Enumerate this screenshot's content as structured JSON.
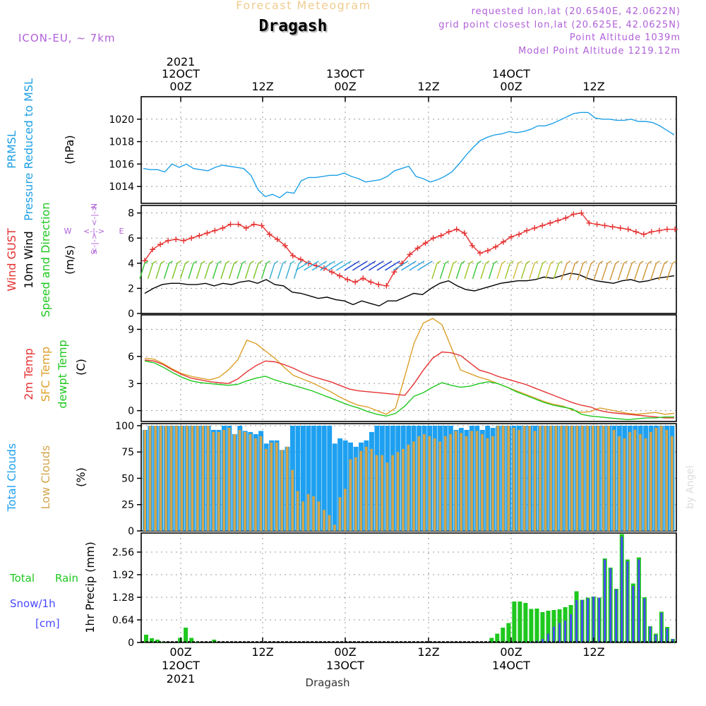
{
  "header": {
    "title": "Forecast Meteogram",
    "location": "Dragash",
    "model": "ICON-EU, ~ 7km",
    "requested": "requested lon,lat (20.6540E, 42.0622N)",
    "gridpoint": "grid point closest lon,lat (20.625E, 42.0625N)",
    "point_alt": "Point Altitude 1039m",
    "model_alt": "Model Point Altitude 1219.12m",
    "footer": "Dragash",
    "credit": "by Angel"
  },
  "colors": {
    "pressure": "#1ea0e6",
    "gust": "#e63232",
    "wind": "#000000",
    "temp": "#e63232",
    "sfc": "#dca02a",
    "dewpt": "#1ec81e",
    "cloud_total": "#1ea0f0",
    "cloud_low": "#d2a64c",
    "rain": "#1ec81e",
    "snow": "#4848ff",
    "axis_text": "#000000",
    "label_purple": "#b060d8",
    "gridline": "#999999"
  },
  "chart_data": [
    {
      "type": "line",
      "id": "pressure",
      "title": "PRMSL Pressure Reduced to MSL",
      "ylabel": "(hPa)",
      "ylim": [
        1012.5,
        1022
      ],
      "yticks": [
        1014,
        1016,
        1018,
        1020
      ],
      "series": [
        {
          "name": "PRMSL",
          "values": [
            1015.6,
            1015.5,
            1015.5,
            1015.3,
            1016.0,
            1015.7,
            1016.0,
            1015.6,
            1015.5,
            1015.4,
            1015.7,
            1015.9,
            1015.8,
            1015.7,
            1015.6,
            1015.0,
            1013.7,
            1013.1,
            1013.3,
            1013.0,
            1013.5,
            1013.4,
            1014.5,
            1014.8,
            1014.8,
            1014.9,
            1015.0,
            1015.0,
            1015.2,
            1014.9,
            1014.7,
            1014.4,
            1014.5,
            1014.6,
            1014.9,
            1015.4,
            1015.6,
            1015.8,
            1014.9,
            1014.7,
            1014.4,
            1014.6,
            1014.9,
            1015.3,
            1016.0,
            1016.8,
            1017.5,
            1018.1,
            1018.4,
            1018.6,
            1018.7,
            1018.9,
            1018.8,
            1018.9,
            1019.1,
            1019.4,
            1019.4,
            1019.6,
            1019.9,
            1020.2,
            1020.5,
            1020.6,
            1020.6,
            1020.1,
            1020.0,
            1020.0,
            1019.9,
            1019.9,
            1020.0,
            1019.8,
            1019.8,
            1019.7,
            1019.4,
            1019.0,
            1018.6
          ]
        }
      ]
    },
    {
      "type": "line",
      "id": "wind",
      "title": "Wind GUST / 10m Wind Speed and Direction",
      "ylabel": "(m/s)",
      "ylim": [
        0,
        8.6
      ],
      "yticks": [
        0,
        2,
        4,
        6,
        8
      ],
      "compass": {
        "n": "N",
        "s": "S",
        "e": "E",
        "w": "W",
        "arrow": "<-|->"
      },
      "series": [
        {
          "name": "Wind GUST",
          "values": [
            4.2,
            5.1,
            5.5,
            5.8,
            5.9,
            5.8,
            6.0,
            6.2,
            6.4,
            6.6,
            6.8,
            7.1,
            7.1,
            6.8,
            7.1,
            7.0,
            6.3,
            5.9,
            5.4,
            4.6,
            4.3,
            4.0,
            3.8,
            3.6,
            3.3,
            3.0,
            2.7,
            2.5,
            2.8,
            2.5,
            2.3,
            2.2,
            3.3,
            4.0,
            4.7,
            5.2,
            5.6,
            6.0,
            6.2,
            6.5,
            6.7,
            6.4,
            5.4,
            4.8,
            5.0,
            5.3,
            5.7,
            6.1,
            6.3,
            6.6,
            6.8,
            7.0,
            7.2,
            7.4,
            7.6,
            7.9,
            8.0,
            7.2,
            7.1,
            7.0,
            6.9,
            6.8,
            6.7,
            6.5,
            6.3,
            6.5,
            6.6,
            6.7,
            6.7
          ]
        },
        {
          "name": "10m Wind",
          "values": [
            1.6,
            2.0,
            2.3,
            2.4,
            2.4,
            2.3,
            2.3,
            2.4,
            2.2,
            2.4,
            2.3,
            2.5,
            2.6,
            2.4,
            2.7,
            2.3,
            2.2,
            1.7,
            1.6,
            1.4,
            1.2,
            1.3,
            1.1,
            1.0,
            0.7,
            1.0,
            0.8,
            0.6,
            1.0,
            1.0,
            1.3,
            1.6,
            1.5,
            2.0,
            2.4,
            2.6,
            2.2,
            1.9,
            1.8,
            2.0,
            2.2,
            2.4,
            2.5,
            2.6,
            2.6,
            2.7,
            2.9,
            2.8,
            3.0,
            3.2,
            3.1,
            2.8,
            2.6,
            2.5,
            2.4,
            2.6,
            2.7,
            2.5,
            2.6,
            2.8,
            2.9,
            3.0
          ]
        }
      ]
    },
    {
      "type": "line",
      "id": "temp",
      "title": "2m Temp / SFC Temp / dewpt Temp",
      "ylabel": "(C)",
      "ylim": [
        -1.2,
        10.6
      ],
      "yticks": [
        0,
        3,
        6,
        9
      ],
      "series": [
        {
          "name": "2m Temp",
          "values": [
            5.6,
            5.5,
            5.1,
            4.5,
            4.0,
            3.6,
            3.4,
            3.2,
            3.1,
            3.0,
            3.5,
            4.3,
            5.0,
            5.5,
            5.4,
            5.1,
            4.7,
            4.2,
            3.8,
            3.5,
            3.2,
            2.8,
            2.4,
            2.2,
            2.1,
            2.0,
            1.9,
            1.8,
            1.7,
            3.0,
            4.5,
            5.8,
            6.5,
            6.4,
            6.1,
            5.3,
            4.5,
            4.2,
            3.8,
            3.5,
            3.2,
            2.9,
            2.5,
            2.1,
            1.7,
            1.3,
            0.9,
            0.6,
            0.4,
            0.0,
            -0.2,
            -0.3,
            -0.4,
            -0.5,
            -0.6,
            -0.7,
            -0.8,
            -0.8
          ]
        },
        {
          "name": "SFC Temp",
          "values": [
            5.8,
            5.7,
            5.2,
            4.6,
            4.1,
            3.8,
            3.6,
            3.4,
            3.7,
            4.5,
            5.6,
            7.8,
            7.4,
            6.6,
            5.8,
            4.8,
            3.9,
            3.5,
            3.1,
            2.6,
            2.1,
            1.5,
            1.0,
            0.6,
            0.4,
            0.0,
            -0.4,
            0.3,
            3.8,
            7.5,
            9.7,
            10.2,
            9.5,
            7.0,
            4.5,
            4.1,
            3.7,
            3.4,
            3.0,
            2.6,
            2.2,
            1.8,
            1.4,
            1.0,
            0.7,
            0.5,
            0.1,
            -0.2,
            -0.1,
            0.3,
            0.1,
            -0.1,
            -0.3,
            -0.4,
            -0.3,
            -0.2,
            -0.4,
            -0.3
          ]
        },
        {
          "name": "dewpt Temp",
          "values": [
            5.5,
            5.3,
            4.8,
            4.2,
            3.7,
            3.3,
            3.1,
            3.0,
            2.9,
            2.8,
            2.9,
            3.3,
            3.6,
            3.8,
            3.4,
            3.1,
            2.8,
            2.5,
            2.2,
            1.8,
            1.4,
            1.0,
            0.6,
            0.3,
            -0.1,
            -0.4,
            -0.6,
            -0.3,
            0.5,
            1.6,
            2.0,
            2.6,
            3.1,
            2.8,
            2.6,
            2.7,
            3.0,
            3.2,
            3.0,
            2.6,
            2.1,
            1.7,
            1.3,
            0.9,
            0.6,
            0.4,
            0.2,
            -0.4,
            -0.6,
            -0.7,
            -0.8,
            -0.9,
            -1.0,
            -0.9,
            -0.8,
            -0.8,
            -0.7,
            -0.7
          ]
        }
      ]
    },
    {
      "type": "bar",
      "id": "clouds",
      "title": "Total Clouds / Low Clouds",
      "ylabel": "(%)",
      "ylim": [
        0,
        102
      ],
      "yticks": [
        0,
        25,
        50,
        75,
        100
      ],
      "series": [
        {
          "name": "Total Clouds",
          "values": [
            96,
            100,
            100,
            100,
            100,
            100,
            100,
            100,
            100,
            100,
            100,
            100,
            100,
            96,
            96,
            100,
            100,
            92,
            100,
            95,
            94,
            92,
            95,
            83,
            86,
            86,
            77,
            80,
            100,
            100,
            100,
            100,
            100,
            100,
            100,
            100,
            83,
            88,
            86,
            84,
            80,
            84,
            86,
            94,
            100,
            100,
            100,
            100,
            100,
            100,
            100,
            100,
            100,
            100,
            100,
            100,
            100,
            100,
            100,
            96,
            98,
            96,
            100,
            100,
            96,
            100,
            98,
            100,
            100,
            100,
            100,
            100,
            100,
            100,
            100,
            100,
            100,
            100,
            100,
            100,
            100,
            100,
            100,
            100,
            100,
            100,
            100,
            100,
            100,
            100,
            100,
            100,
            100,
            100,
            100,
            100,
            100,
            100,
            100,
            100,
            100
          ]
        },
        {
          "name": "Low Clouds",
          "values": [
            96,
            100,
            100,
            100,
            100,
            100,
            100,
            100,
            100,
            100,
            100,
            100,
            100,
            94,
            94,
            96,
            98,
            92,
            96,
            94,
            92,
            88,
            90,
            78,
            84,
            84,
            77,
            80,
            58,
            38,
            28,
            35,
            33,
            28,
            20,
            15,
            6,
            32,
            40,
            68,
            70,
            76,
            80,
            78,
            72,
            72,
            65,
            72,
            75,
            78,
            82,
            85,
            90,
            92,
            90,
            88,
            85,
            90,
            92,
            95,
            93,
            90,
            95,
            95,
            92,
            88,
            90,
            100,
            100,
            100,
            98,
            96,
            100,
            100,
            95,
            100,
            100,
            100,
            100,
            100,
            100,
            100,
            100,
            100,
            100,
            100,
            100,
            100,
            100,
            96,
            90,
            88,
            94,
            96,
            92,
            88,
            94,
            98,
            100,
            96,
            90
          ]
        }
      ]
    },
    {
      "type": "bar",
      "id": "precip",
      "title": "Total Rain / Snow/1h [cm]",
      "ylabel": "1hr Precip (mm)",
      "ylim": [
        0,
        3.1
      ],
      "yticks": [
        0,
        0.64,
        1.28,
        1.92,
        2.56
      ],
      "series": [
        {
          "name": "Total Rain",
          "values": [
            0.22,
            0.12,
            0.08,
            0.02,
            0,
            0,
            0.13,
            0.42,
            0.13,
            0.02,
            0,
            0,
            0.08,
            0,
            0,
            0,
            0,
            0,
            0,
            0,
            0,
            0,
            0,
            0,
            0,
            0,
            0,
            0,
            0,
            0,
            0,
            0,
            0,
            0,
            0,
            0,
            0,
            0,
            0,
            0,
            0,
            0,
            0,
            0,
            0,
            0,
            0,
            0,
            0,
            0,
            0,
            0,
            0,
            0,
            0,
            0,
            0,
            0,
            0,
            0,
            0,
            0.13,
            0.25,
            0.42,
            0.55,
            1.16,
            1.16,
            1.12,
            0.95,
            0.96,
            0.86,
            0.9,
            0.92,
            0.94,
            1.0,
            1.06,
            1.45,
            1.21,
            1.27,
            1.3,
            1.27,
            2.38,
            2.12,
            1.52,
            3.07,
            2.35,
            1.67,
            2.41,
            1.28,
            0.46,
            0.25,
            0.87,
            0.44,
            0.1
          ]
        },
        {
          "name": "Snow/1h",
          "values": [
            0,
            0,
            0,
            0,
            0,
            0,
            0,
            0,
            0,
            0,
            0,
            0,
            0,
            0,
            0,
            0,
            0,
            0,
            0,
            0,
            0,
            0,
            0,
            0,
            0,
            0,
            0,
            0,
            0,
            0,
            0,
            0,
            0,
            0,
            0,
            0,
            0,
            0,
            0,
            0,
            0,
            0,
            0,
            0,
            0,
            0,
            0,
            0,
            0,
            0,
            0,
            0,
            0,
            0,
            0,
            0,
            0,
            0,
            0,
            0,
            0,
            0,
            0,
            0,
            0,
            0,
            0,
            0,
            0.02,
            0.05,
            0.1,
            0.25,
            0.45,
            0.55,
            0.62,
            0.8,
            1.2,
            1.2,
            1.25,
            1.3,
            1.27,
            2.35,
            2.1,
            1.5,
            3.0,
            2.3,
            1.6,
            2.35,
            1.25,
            0.45,
            0.22,
            0.84,
            0.4,
            0.1
          ]
        }
      ]
    }
  ],
  "axes": {
    "top": {
      "year": "2021",
      "ticks": [
        {
          "l1": "12OCT",
          "l2": "00Z"
        },
        {
          "l1": "",
          "l2": "12Z"
        },
        {
          "l1": "13OCT",
          "l2": "00Z"
        },
        {
          "l1": "",
          "l2": "12Z"
        },
        {
          "l1": "14OCT",
          "l2": "00Z"
        },
        {
          "l1": "",
          "l2": "12Z"
        }
      ]
    },
    "bottom": {
      "year": "2021",
      "ticks": [
        {
          "l1": "00Z",
          "l2": "12OCT"
        },
        {
          "l1": "12Z",
          "l2": ""
        },
        {
          "l1": "00Z",
          "l2": "13OCT"
        },
        {
          "l1": "12Z",
          "l2": ""
        },
        {
          "l1": "00Z",
          "l2": "14OCT"
        },
        {
          "l1": "12Z",
          "l2": ""
        }
      ]
    }
  },
  "panel_labels": {
    "pressure": [
      "PRMSL",
      "Pressure Reduced to MSL",
      "(hPa)"
    ],
    "wind": [
      "Wind GUST",
      "10m Wind",
      "Speed and Direction",
      "(m/s)"
    ],
    "temp": [
      "2m Temp",
      "SFC Temp",
      "dewpt Temp",
      "(C)"
    ],
    "clouds": [
      "Total Clouds",
      "Low Clouds",
      "(%)"
    ],
    "precip_side": [
      "Total",
      "Rain",
      "Snow/1h",
      "[cm]"
    ],
    "precip_axis": "1hr Precip (mm)"
  }
}
